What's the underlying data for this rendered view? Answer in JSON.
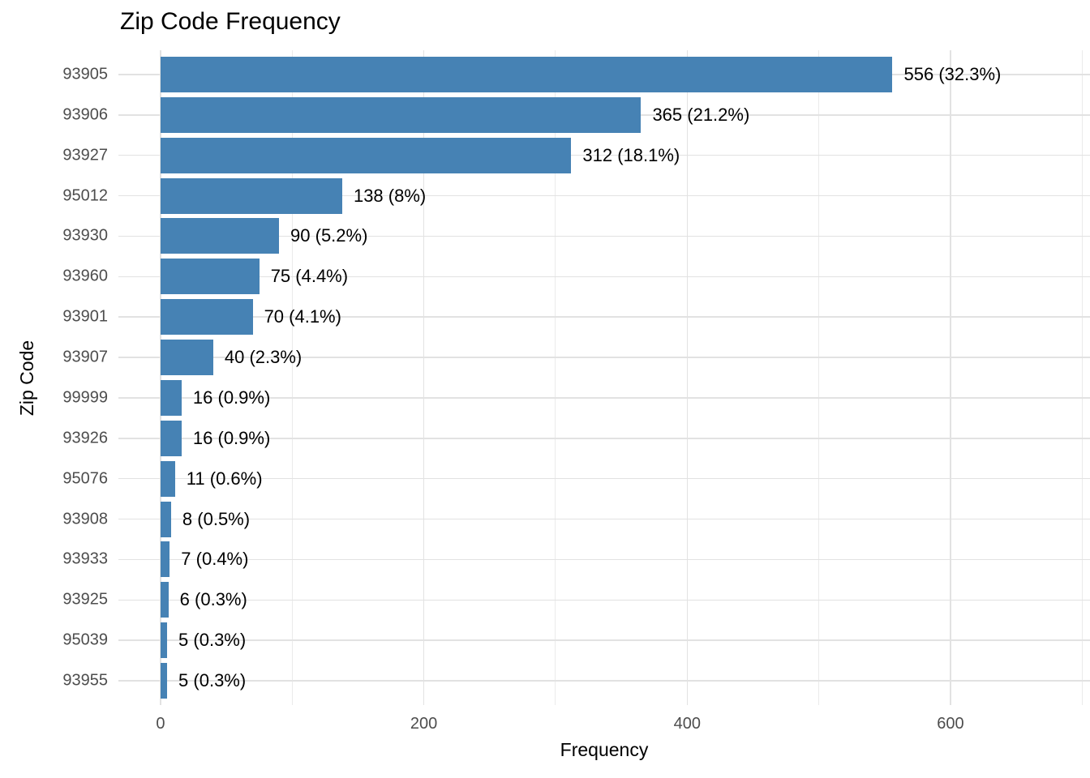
{
  "chart_data": {
    "type": "bar",
    "orientation": "horizontal",
    "title": "Zip Code Frequency",
    "xlabel": "Frequency",
    "ylabel": "Zip Code",
    "categories": [
      "93905",
      "93906",
      "93927",
      "95012",
      "93930",
      "93960",
      "93901",
      "93907",
      "99999",
      "93926",
      "95076",
      "93908",
      "93933",
      "93925",
      "95039",
      "93955"
    ],
    "values": [
      556,
      365,
      312,
      138,
      90,
      75,
      70,
      40,
      16,
      16,
      11,
      8,
      7,
      6,
      5,
      5
    ],
    "bar_labels": [
      "556 (32.3%)",
      "365 (21.2%)",
      "312 (18.1%)",
      "138 (8%)",
      "90 (5.2%)",
      "75 (4.4%)",
      "70 (4.1%)",
      "40 (2.3%)",
      "16 (0.9%)",
      "16 (0.9%)",
      "11 (0.6%)",
      "8 (0.5%)",
      "7 (0.4%)",
      "6 (0.3%)",
      "5 (0.3%)",
      "5 (0.3%)"
    ],
    "x_ticks": [
      0,
      200,
      400,
      600
    ],
    "x_tick_labels": [
      "0",
      "200",
      "400",
      "600"
    ],
    "x_minor_ticks": [
      100,
      300,
      500,
      700
    ],
    "xlim": [
      -32,
      706
    ],
    "grid": true,
    "legend": "none",
    "colors": {
      "bar": "#4682B4",
      "grid_major": "#E2E2E2",
      "grid_minor": "#EBEBEB",
      "axis_text": "#4D4D4D",
      "title_text": "#000000",
      "bar_label_text": "#000000",
      "background": "#FFFFFF"
    }
  }
}
